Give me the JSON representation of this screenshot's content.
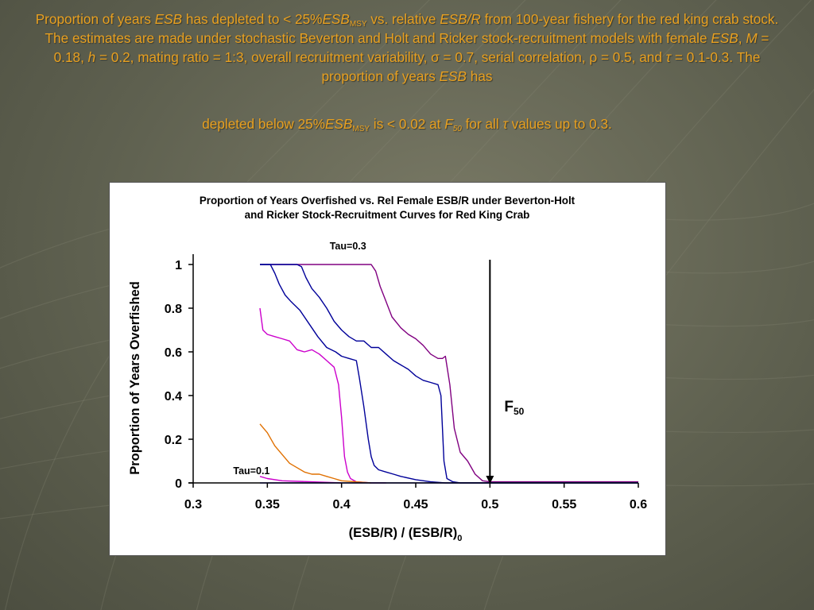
{
  "caption": {
    "p1": [
      {
        "t": "Proportion of years "
      },
      {
        "t": "ESB",
        "i": true
      },
      {
        "t": " has depleted to < 25%"
      },
      {
        "t": "ESB",
        "i": true
      },
      {
        "t": "MSY",
        "sub": true
      },
      {
        "t": " vs. relative "
      },
      {
        "t": "ESB/R",
        "i": true
      },
      {
        "t": " from 100-year fishery for the red king crab stock.  The estimates are made under stochastic Beverton and Holt and Ricker stock-recruitment models with female "
      },
      {
        "t": "ESB",
        "i": true
      },
      {
        "t": ", "
      },
      {
        "t": "M",
        "i": true
      },
      {
        "t": " = 0.18, "
      },
      {
        "t": "h",
        "i": true
      },
      {
        "t": " = 0.2, mating ratio = 1:3, overall recruitment variability, σ  = 0.7, serial correlation,  ρ  = 0.5, and "
      },
      {
        "t": "τ",
        "i": true
      },
      {
        "t": " = 0.1-0.3. The proportion of years "
      },
      {
        "t": "ESB",
        "i": true
      },
      {
        "t": " has"
      }
    ],
    "p2": [
      {
        "t": "depleted below 25%"
      },
      {
        "t": "ESB",
        "i": true
      },
      {
        "t": "MSY",
        "sub": true
      },
      {
        "t": " is < 0.02 at "
      },
      {
        "t": "F",
        "i": true
      },
      {
        "t": "50",
        "sub": true,
        "i": true
      },
      {
        "t": " for all "
      },
      {
        "t": "τ",
        "i": true
      },
      {
        "t": " values up to 0.3."
      }
    ]
  },
  "chart_data": {
    "type": "line",
    "title": "Proportion of Years Overfished vs. Rel Female ESB/R under Beverton-Holt and Ricker Stock-Recruitment Curves for Red King Crab",
    "title_lines": [
      "Proportion of Years Overfished vs. Rel Female ESB/R under Beverton-Holt",
      "and Ricker Stock-Recruitment Curves for Red King Crab"
    ],
    "xlabel": "(ESB/R) / (ESB/R)",
    "xlabel_sub": "0",
    "ylabel": "Proportion of Years Overfished",
    "xlim": [
      0.3,
      0.6
    ],
    "ylim": [
      0,
      1
    ],
    "xticks": [
      "0.3",
      "0.35",
      "0.4",
      "0.45",
      "0.5",
      "0.55",
      "0.6"
    ],
    "yticks": [
      "0",
      "0.2",
      "0.4",
      "0.6",
      "0.8",
      "1"
    ],
    "grid": false,
    "annotations": [
      {
        "text": "Tau=0.3",
        "x": 0.392,
        "y": 1.07
      },
      {
        "text": "Tau=0.1",
        "x": 0.327,
        "y": 0.04
      }
    ],
    "reference_line": {
      "x": 0.5,
      "label": "F",
      "label_sub": "50"
    },
    "series": [
      {
        "color": "#800080",
        "x": [
          0.345,
          0.42,
          0.423,
          0.426,
          0.43,
          0.434,
          0.44,
          0.445,
          0.45,
          0.455,
          0.46,
          0.465,
          0.468,
          0.47,
          0.473,
          0.476,
          0.48,
          0.485,
          0.49,
          0.495,
          0.5,
          0.6
        ],
        "y": [
          1.0,
          1.0,
          0.97,
          0.9,
          0.83,
          0.76,
          0.71,
          0.68,
          0.66,
          0.63,
          0.59,
          0.57,
          0.57,
          0.58,
          0.45,
          0.25,
          0.14,
          0.1,
          0.04,
          0.01,
          0.005,
          0.005
        ]
      },
      {
        "color": "#000099",
        "x": [
          0.345,
          0.37,
          0.373,
          0.376,
          0.38,
          0.385,
          0.39,
          0.395,
          0.4,
          0.405,
          0.41,
          0.415,
          0.42,
          0.425,
          0.43,
          0.435,
          0.44,
          0.445,
          0.45,
          0.455,
          0.46,
          0.465,
          0.467,
          0.469,
          0.471,
          0.475,
          0.48,
          0.6
        ],
        "y": [
          1.0,
          1.0,
          0.99,
          0.94,
          0.89,
          0.85,
          0.8,
          0.74,
          0.7,
          0.67,
          0.65,
          0.65,
          0.62,
          0.62,
          0.59,
          0.56,
          0.54,
          0.52,
          0.49,
          0.47,
          0.46,
          0.45,
          0.4,
          0.1,
          0.02,
          0.005,
          0.0,
          0.0
        ]
      },
      {
        "color": "#000099",
        "x": [
          0.345,
          0.352,
          0.355,
          0.358,
          0.362,
          0.366,
          0.372,
          0.378,
          0.384,
          0.39,
          0.396,
          0.4,
          0.405,
          0.41,
          0.412,
          0.415,
          0.418,
          0.42,
          0.422,
          0.425,
          0.43,
          0.435,
          0.44,
          0.45,
          0.46,
          0.47,
          0.48,
          0.6
        ],
        "y": [
          1.0,
          1.0,
          0.96,
          0.91,
          0.86,
          0.83,
          0.79,
          0.73,
          0.67,
          0.62,
          0.6,
          0.58,
          0.57,
          0.56,
          0.48,
          0.35,
          0.2,
          0.12,
          0.08,
          0.06,
          0.05,
          0.04,
          0.03,
          0.015,
          0.005,
          0.0,
          0.0,
          0.0
        ]
      },
      {
        "color": "#cc00cc",
        "x": [
          0.345,
          0.347,
          0.35,
          0.355,
          0.36,
          0.365,
          0.37,
          0.375,
          0.38,
          0.385,
          0.39,
          0.395,
          0.398,
          0.4,
          0.402,
          0.404,
          0.406,
          0.41,
          0.42,
          0.43
        ],
        "y": [
          0.8,
          0.7,
          0.68,
          0.67,
          0.66,
          0.65,
          0.61,
          0.6,
          0.61,
          0.59,
          0.56,
          0.53,
          0.45,
          0.3,
          0.12,
          0.05,
          0.02,
          0.005,
          0.0,
          0.0
        ]
      },
      {
        "color": "#e07000",
        "x": [
          0.345,
          0.35,
          0.355,
          0.36,
          0.365,
          0.37,
          0.375,
          0.38,
          0.385,
          0.39,
          0.395,
          0.4,
          0.42
        ],
        "y": [
          0.27,
          0.23,
          0.17,
          0.13,
          0.09,
          0.07,
          0.05,
          0.04,
          0.04,
          0.03,
          0.02,
          0.01,
          0.0
        ]
      },
      {
        "color": "#cc00cc",
        "x": [
          0.345,
          0.35,
          0.36,
          0.38,
          0.4
        ],
        "y": [
          0.03,
          0.02,
          0.01,
          0.005,
          0.0
        ]
      },
      {
        "color": "#3333ff",
        "x": [
          0.345,
          0.36,
          0.4,
          0.5,
          0.6
        ],
        "y": [
          0.0,
          0.0,
          0.0,
          0.0,
          0.0
        ]
      }
    ]
  },
  "colors": {
    "caption": "#e8a020",
    "background": "#5f6150",
    "frame": "#ffffff"
  }
}
